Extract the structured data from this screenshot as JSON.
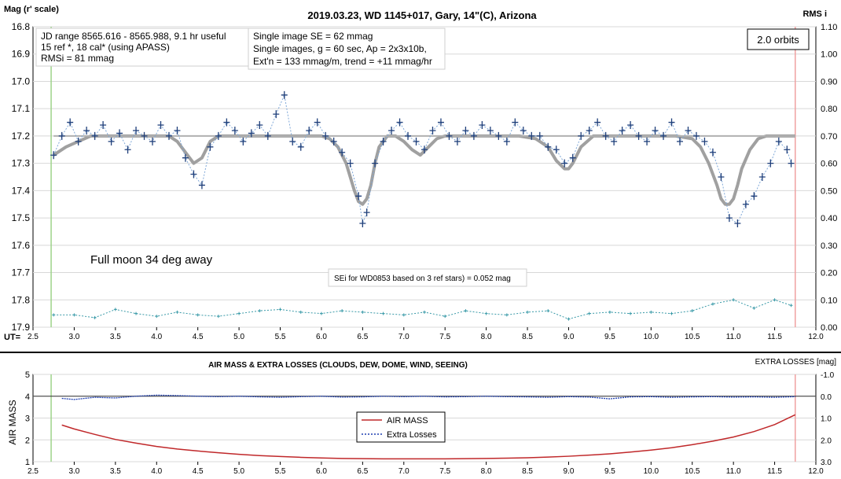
{
  "chart_data": [
    {
      "type": "scatter",
      "title": "2019.03.23, WD 1145+017, Gary, 14\"(C), Arizona",
      "ylabel": "Mag (r' scale)",
      "y2label": "RMS i",
      "xlabel": "UT=",
      "xlim": [
        2.5,
        12.0
      ],
      "ylim": [
        16.8,
        17.9
      ],
      "y2lim": [
        0.0,
        1.1
      ],
      "x_ticks": [
        "2.5",
        "3.0",
        "3.5",
        "4.0",
        "4.5",
        "5.0",
        "5.5",
        "6.0",
        "6.5",
        "7.0",
        "7.5",
        "8.0",
        "8.5",
        "9.0",
        "9.5",
        "10.0",
        "10.5",
        "11.0",
        "11.5",
        "12.0"
      ],
      "y_ticks": [
        "16.8",
        "16.9",
        "17.0",
        "17.1",
        "17.2",
        "17.3",
        "17.4",
        "17.5",
        "17.6",
        "17.7",
        "17.8",
        "17.9"
      ],
      "y2_ticks": [
        "1.10",
        "1.00",
        "0.90",
        "0.80",
        "0.70",
        "0.60",
        "0.50",
        "0.40",
        "0.30",
        "0.20",
        "0.10",
        "0.00"
      ],
      "annotations": {
        "info_box_1": [
          "JD range 8565.616 - 8565.988, 9.1 hr useful",
          "15 ref *, 18 cal* (using APASS)",
          "RMSi = 81 mmag"
        ],
        "info_box_2": [
          "Single image SE = 62 mmag",
          "Single images, g = 60 sec, Ap = 2x3x10b,",
          "Ext'n = 133 mmag/m, trend = +11 mmag/hr"
        ],
        "orbits": "2.0 orbits",
        "moon": "Full moon 34 deg away",
        "sei_note": "SEi for WD0853 based on 3 ref stars) = 0.052 mag"
      },
      "vertical_markers_ut": [
        2.72,
        11.75
      ],
      "series": [
        {
          "kind": "measurements",
          "color": "#1f3f7a",
          "x": [
            2.75,
            2.85,
            2.95,
            3.05,
            3.15,
            3.25,
            3.35,
            3.45,
            3.55,
            3.65,
            3.75,
            3.85,
            3.95,
            4.05,
            4.15,
            4.25,
            4.35,
            4.45,
            4.55,
            4.65,
            4.75,
            4.85,
            4.95,
            5.05,
            5.15,
            5.25,
            5.35,
            5.45,
            5.55,
            5.65,
            5.75,
            5.85,
            5.95,
            6.05,
            6.15,
            6.25,
            6.35,
            6.45,
            6.5,
            6.55,
            6.65,
            6.75,
            6.85,
            6.95,
            7.05,
            7.15,
            7.25,
            7.35,
            7.45,
            7.55,
            7.65,
            7.75,
            7.85,
            7.95,
            8.05,
            8.15,
            8.25,
            8.35,
            8.45,
            8.55,
            8.65,
            8.75,
            8.85,
            8.95,
            9.05,
            9.15,
            9.25,
            9.35,
            9.45,
            9.55,
            9.65,
            9.75,
            9.85,
            9.95,
            10.05,
            10.15,
            10.25,
            10.35,
            10.45,
            10.55,
            10.65,
            10.75,
            10.85,
            10.95,
            11.05,
            11.15,
            11.25,
            11.35,
            11.45,
            11.55,
            11.65,
            11.7
          ],
          "y": [
            17.27,
            17.2,
            17.15,
            17.22,
            17.18,
            17.2,
            17.16,
            17.22,
            17.19,
            17.25,
            17.18,
            17.2,
            17.22,
            17.16,
            17.2,
            17.18,
            17.28,
            17.34,
            17.38,
            17.24,
            17.2,
            17.15,
            17.18,
            17.22,
            17.19,
            17.16,
            17.2,
            17.12,
            17.05,
            17.22,
            17.24,
            17.18,
            17.15,
            17.2,
            17.22,
            17.26,
            17.3,
            17.42,
            17.52,
            17.48,
            17.3,
            17.22,
            17.18,
            17.15,
            17.2,
            17.22,
            17.25,
            17.18,
            17.15,
            17.2,
            17.22,
            17.18,
            17.2,
            17.16,
            17.18,
            17.2,
            17.22,
            17.15,
            17.18,
            17.2,
            17.2,
            17.24,
            17.25,
            17.3,
            17.28,
            17.2,
            17.18,
            17.15,
            17.2,
            17.22,
            17.18,
            17.16,
            17.2,
            17.22,
            17.18,
            17.2,
            17.15,
            17.22,
            17.18,
            17.2,
            17.22,
            17.26,
            17.35,
            17.5,
            17.52,
            17.45,
            17.42,
            17.35,
            17.3,
            17.22,
            17.25,
            17.3
          ]
        },
        {
          "kind": "model",
          "color": "#a0a0a0",
          "x": [
            2.75,
            2.9,
            3.05,
            3.2,
            3.35,
            3.5,
            3.65,
            3.8,
            3.95,
            4.05,
            4.15,
            4.25,
            4.35,
            4.45,
            4.55,
            4.65,
            4.75,
            4.85,
            4.95,
            5.05,
            5.2,
            5.4,
            5.6,
            5.8,
            6.0,
            6.1,
            6.2,
            6.3,
            6.4,
            6.45,
            6.5,
            6.55,
            6.6,
            6.65,
            6.7,
            6.8,
            6.9,
            7.0,
            7.1,
            7.2,
            7.3,
            7.4,
            7.5,
            7.6,
            7.8,
            8.0,
            8.2,
            8.4,
            8.6,
            8.75,
            8.85,
            8.95,
            9.0,
            9.05,
            9.15,
            9.3,
            9.5,
            9.7,
            9.9,
            10.1,
            10.3,
            10.5,
            10.6,
            10.7,
            10.8,
            10.85,
            10.9,
            10.95,
            11.0,
            11.05,
            11.1,
            11.2,
            11.3,
            11.4,
            11.5,
            11.6,
            11.75
          ],
          "y": [
            17.27,
            17.24,
            17.22,
            17.2,
            17.2,
            17.2,
            17.2,
            17.2,
            17.2,
            17.2,
            17.2,
            17.22,
            17.26,
            17.3,
            17.28,
            17.22,
            17.2,
            17.2,
            17.2,
            17.2,
            17.2,
            17.2,
            17.2,
            17.2,
            17.2,
            17.21,
            17.24,
            17.3,
            17.4,
            17.44,
            17.45,
            17.43,
            17.38,
            17.3,
            17.24,
            17.2,
            17.2,
            17.22,
            17.25,
            17.27,
            17.24,
            17.21,
            17.2,
            17.2,
            17.2,
            17.2,
            17.2,
            17.2,
            17.21,
            17.24,
            17.29,
            17.32,
            17.32,
            17.3,
            17.24,
            17.2,
            17.2,
            17.2,
            17.2,
            17.2,
            17.2,
            17.21,
            17.24,
            17.3,
            17.38,
            17.43,
            17.45,
            17.45,
            17.43,
            17.38,
            17.32,
            17.25,
            17.21,
            17.2,
            17.2,
            17.2,
            17.2
          ]
        },
        {
          "kind": "rms",
          "color": "#3a9aa8",
          "x": [
            2.75,
            3.0,
            3.25,
            3.5,
            3.75,
            4.0,
            4.25,
            4.5,
            4.75,
            5.0,
            5.25,
            5.5,
            5.75,
            6.0,
            6.25,
            6.5,
            6.75,
            7.0,
            7.25,
            7.5,
            7.75,
            8.0,
            8.25,
            8.5,
            8.75,
            9.0,
            9.25,
            9.5,
            9.75,
            10.0,
            10.25,
            10.5,
            10.75,
            11.0,
            11.25,
            11.5,
            11.7
          ],
          "y": [
            0.045,
            0.045,
            0.035,
            0.065,
            0.05,
            0.04,
            0.055,
            0.045,
            0.04,
            0.05,
            0.06,
            0.065,
            0.055,
            0.05,
            0.06,
            0.055,
            0.05,
            0.045,
            0.055,
            0.04,
            0.06,
            0.05,
            0.045,
            0.055,
            0.06,
            0.03,
            0.05,
            0.055,
            0.05,
            0.055,
            0.05,
            0.06,
            0.085,
            0.1,
            0.07,
            0.1,
            0.08
          ]
        }
      ]
    },
    {
      "type": "line",
      "title": "AIR MASS & EXTRA LOSSES (CLOUDS, DEW, DOME, WIND, SEEING)",
      "ylabel": "AIR MASS",
      "y2label": "EXTRA LOSSES [mag]",
      "xlim": [
        2.5,
        12.0
      ],
      "ylim": [
        1,
        5
      ],
      "y2lim": [
        -1.0,
        3.0
      ],
      "x_ticks": [
        "2.5",
        "3.0",
        "3.5",
        "4.0",
        "4.5",
        "5.0",
        "5.5",
        "6.0",
        "6.5",
        "7.0",
        "7.5",
        "8.0",
        "8.5",
        "9.0",
        "9.5",
        "10.0",
        "10.5",
        "11.0",
        "11.5",
        "12.0"
      ],
      "y_ticks": [
        "5",
        "4",
        "3",
        "2",
        "1"
      ],
      "y2_ticks": [
        "-1.0",
        "0.0",
        "1.0",
        "2.0",
        "3.0"
      ],
      "legend": [
        "AIR MASS",
        "Extra Losses"
      ],
      "series": [
        {
          "name": "AIR MASS",
          "color": "#c0282a",
          "x": [
            2.85,
            3.0,
            3.25,
            3.5,
            3.75,
            4.0,
            4.25,
            4.5,
            4.75,
            5.0,
            5.25,
            5.5,
            5.75,
            6.0,
            6.25,
            6.5,
            6.75,
            7.0,
            7.25,
            7.5,
            7.75,
            8.0,
            8.25,
            8.5,
            8.75,
            9.0,
            9.25,
            9.5,
            9.75,
            10.0,
            10.25,
            10.5,
            10.75,
            11.0,
            11.25,
            11.5,
            11.75
          ],
          "y": [
            2.68,
            2.5,
            2.25,
            2.02,
            1.85,
            1.7,
            1.58,
            1.49,
            1.41,
            1.34,
            1.28,
            1.24,
            1.2,
            1.17,
            1.15,
            1.14,
            1.13,
            1.13,
            1.13,
            1.13,
            1.14,
            1.15,
            1.16,
            1.18,
            1.21,
            1.25,
            1.3,
            1.36,
            1.44,
            1.53,
            1.64,
            1.78,
            1.94,
            2.13,
            2.38,
            2.7,
            3.15
          ]
        },
        {
          "name": "Extra Losses",
          "color": "#1f3fb0",
          "x": [
            2.85,
            3.0,
            3.25,
            3.5,
            3.75,
            4.0,
            4.25,
            4.5,
            4.75,
            5.0,
            5.25,
            5.5,
            5.75,
            6.0,
            6.25,
            6.5,
            6.75,
            7.0,
            7.25,
            7.5,
            7.75,
            8.0,
            8.25,
            8.5,
            8.75,
            9.0,
            9.25,
            9.5,
            9.75,
            10.0,
            10.25,
            10.5,
            10.75,
            11.0,
            11.25,
            11.5,
            11.75
          ],
          "y": [
            0.1,
            0.15,
            0.05,
            0.08,
            0.0,
            -0.05,
            -0.03,
            0.0,
            0.02,
            0.0,
            0.03,
            0.05,
            0.02,
            0.0,
            0.04,
            0.03,
            0.0,
            0.02,
            0.0,
            0.03,
            0.02,
            0.0,
            0.02,
            0.03,
            0.05,
            0.02,
            0.04,
            0.12,
            0.03,
            0.02,
            0.05,
            0.03,
            0.02,
            0.04,
            0.03,
            0.05,
            0.02
          ]
        }
      ]
    }
  ]
}
